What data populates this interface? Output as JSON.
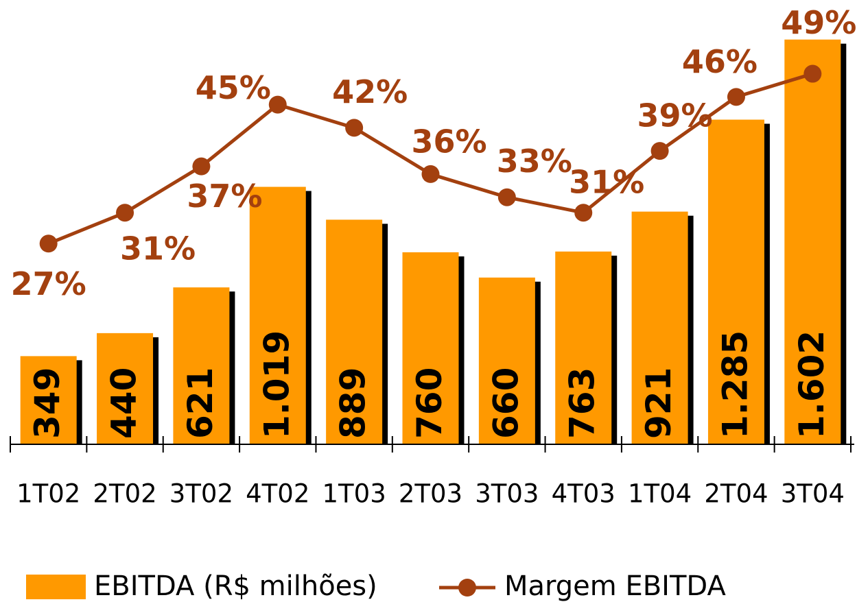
{
  "chart_data": {
    "type": "bar+line",
    "categories": [
      "1T02",
      "2T02",
      "3T02",
      "4T02",
      "1T03",
      "2T03",
      "3T03",
      "4T03",
      "1T04",
      "2T04",
      "3T04"
    ],
    "ylim": [
      0,
      1650
    ],
    "y2lim": [
      1,
      55
    ],
    "series": [
      {
        "name": "EBITDA (R$ milhões)",
        "type": "bar",
        "color": "#ff9900",
        "values": [
          349,
          440,
          621,
          1019,
          889,
          760,
          660,
          763,
          921,
          1285,
          1602
        ],
        "value_labels": [
          "349",
          "440",
          "621",
          "1.019",
          "889",
          "760",
          "660",
          "763",
          "921",
          "1.285",
          "1.602"
        ]
      },
      {
        "name": "Margem EBITDA",
        "type": "line",
        "axis": "y2",
        "color": "#a3400f",
        "values": [
          27,
          31,
          37,
          45,
          42,
          36,
          33,
          31,
          39,
          46,
          49
        ],
        "value_labels": [
          "27%",
          "31%",
          "37%",
          "45%",
          "42%",
          "36%",
          "33%",
          "31%",
          "39%",
          "46%",
          "49%"
        ]
      }
    ]
  }
}
